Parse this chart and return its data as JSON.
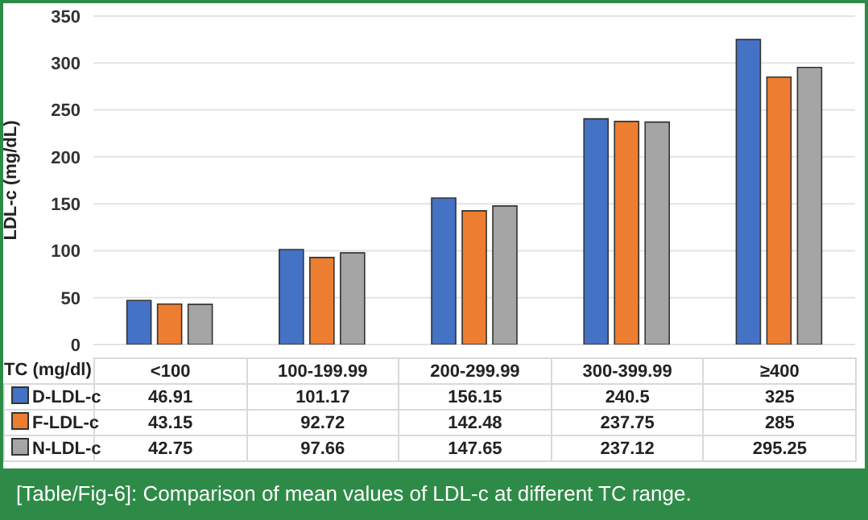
{
  "chart_data": {
    "type": "bar",
    "xlabel": "TC (mg/dl)",
    "ylabel": "LDL-c (mg/dL)",
    "categories": [
      "<100",
      "100-199.99",
      "200-299.99",
      "300-399.99",
      "≥400"
    ],
    "series": [
      {
        "name": "D-LDL-c",
        "color": "#4472c4",
        "values": [
          46.91,
          101.17,
          156.15,
          240.5,
          325
        ]
      },
      {
        "name": "F-LDL-c",
        "color": "#ed7d31",
        "values": [
          43.15,
          92.72,
          142.48,
          237.75,
          285
        ]
      },
      {
        "name": "N-LDL-c",
        "color": "#a5a5a5",
        "values": [
          42.75,
          97.66,
          147.65,
          237.12,
          295.25
        ]
      }
    ],
    "ylim": [
      0,
      350
    ],
    "yticks": [
      0,
      50,
      100,
      150,
      200,
      250,
      300,
      350
    ],
    "grid": "y",
    "legend": "bottom",
    "data_labels": true,
    "annotations": [
      "[Table/Fig-6]: Comparison of mean values of LDL-c at different TC range."
    ]
  }
}
